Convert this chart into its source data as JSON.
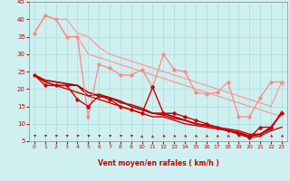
{
  "xlabel": "Vent moyen/en rafales ( km/h )",
  "background_color": "#cff0f0",
  "grid_color": "#aadddd",
  "xlim": [
    -0.5,
    23.5
  ],
  "ylim": [
    5,
    45
  ],
  "yticks": [
    5,
    10,
    15,
    20,
    25,
    30,
    35,
    40,
    45
  ],
  "xticks": [
    0,
    1,
    2,
    3,
    4,
    5,
    6,
    7,
    8,
    9,
    10,
    11,
    12,
    13,
    14,
    15,
    16,
    17,
    18,
    19,
    20,
    21,
    22,
    23
  ],
  "series": [
    {
      "x": [
        0,
        1,
        2,
        3,
        4,
        5,
        6,
        7,
        8,
        9,
        10,
        11,
        12,
        13,
        14,
        15,
        16,
        17,
        18,
        19,
        20,
        21,
        22,
        23
      ],
      "y": [
        36,
        41,
        40,
        35,
        35,
        12,
        27,
        26,
        24,
        24,
        25.5,
        20.5,
        30,
        25.5,
        25,
        19,
        18.5,
        19,
        22,
        12,
        12,
        17.5,
        22,
        22
      ],
      "color": "#ff8888",
      "lw": 0.9,
      "marker": "D",
      "ms": 1.8
    },
    {
      "x": [
        0,
        1,
        2,
        3,
        4,
        5,
        6,
        7,
        8,
        9,
        10,
        11,
        12,
        13,
        14,
        15,
        16,
        17,
        18,
        19,
        20,
        21,
        22,
        23
      ],
      "y": [
        36,
        41,
        40,
        40,
        36,
        35,
        32,
        30,
        29,
        28,
        27,
        26,
        25,
        24,
        23,
        22,
        21,
        20,
        19,
        18,
        17,
        16,
        15,
        22
      ],
      "color": "#ff9999",
      "lw": 0.9,
      "marker": null,
      "ms": 0
    },
    {
      "x": [
        0,
        1,
        2,
        3,
        4,
        5,
        6,
        7,
        8,
        9,
        10,
        11,
        12,
        13,
        14,
        15,
        16,
        17,
        18,
        19,
        20,
        21,
        22,
        23
      ],
      "y": [
        36,
        41,
        40,
        35,
        35,
        30,
        29,
        28,
        27,
        26,
        25,
        24,
        23,
        22,
        21,
        20,
        19,
        18,
        17,
        16,
        15,
        14,
        13,
        12
      ],
      "color": "#ff9999",
      "lw": 0.9,
      "marker": null,
      "ms": 0
    },
    {
      "x": [
        0,
        1,
        2,
        3,
        4,
        5,
        6,
        7,
        8,
        9,
        10,
        11,
        12,
        13,
        14,
        15,
        16,
        17,
        18,
        19,
        20,
        21,
        22,
        23
      ],
      "y": [
        24,
        21,
        21,
        21,
        17,
        15,
        18,
        17,
        15,
        14,
        13,
        20.5,
        13,
        13,
        12,
        11,
        10,
        9,
        8,
        7,
        6,
        9,
        9,
        13
      ],
      "color": "#cc0000",
      "lw": 1.0,
      "marker": "D",
      "ms": 1.8
    },
    {
      "x": [
        0,
        1,
        2,
        3,
        4,
        5,
        6,
        7,
        8,
        9,
        10,
        11,
        12,
        13,
        14,
        15,
        16,
        17,
        18,
        19,
        20,
        21,
        22,
        23
      ],
      "y": [
        24,
        22,
        21,
        20,
        19,
        18,
        17,
        16,
        15,
        14,
        13,
        12,
        12,
        11,
        10,
        9.5,
        9,
        8.5,
        8,
        7.5,
        6,
        6.5,
        8,
        9
      ],
      "color": "#cc0000",
      "lw": 1.0,
      "marker": null,
      "ms": 0
    },
    {
      "x": [
        0,
        1,
        2,
        3,
        4,
        5,
        6,
        7,
        8,
        9,
        10,
        11,
        12,
        13,
        14,
        15,
        16,
        17,
        18,
        19,
        20,
        21,
        22,
        23
      ],
      "y": [
        24,
        22,
        21,
        21,
        21,
        18,
        18.5,
        17.5,
        16,
        15.5,
        14.5,
        13,
        12.5,
        11.5,
        11,
        10,
        9.5,
        9,
        8.5,
        8,
        7,
        7,
        8.5,
        13.5
      ],
      "color": "#cc0000",
      "lw": 1.0,
      "marker": null,
      "ms": 0
    },
    {
      "x": [
        0,
        1,
        2,
        3,
        4,
        5,
        6,
        7,
        8,
        9,
        10,
        11,
        12,
        13,
        14,
        15,
        16,
        17,
        18,
        19,
        20,
        21,
        22,
        23
      ],
      "y": [
        24,
        22.5,
        22,
        21.5,
        21,
        19,
        18,
        17.5,
        16.5,
        15,
        14,
        13,
        13,
        12,
        11,
        10,
        9.5,
        9,
        8,
        7.5,
        6.5,
        7,
        9,
        13
      ],
      "color": "#aa0000",
      "lw": 1.2,
      "marker": null,
      "ms": 0
    }
  ],
  "arrow_angles": [
    45,
    45,
    45,
    45,
    45,
    45,
    45,
    45,
    45,
    45,
    90,
    90,
    315,
    315,
    315,
    315,
    315,
    315,
    315,
    315,
    315,
    315,
    315,
    315
  ]
}
